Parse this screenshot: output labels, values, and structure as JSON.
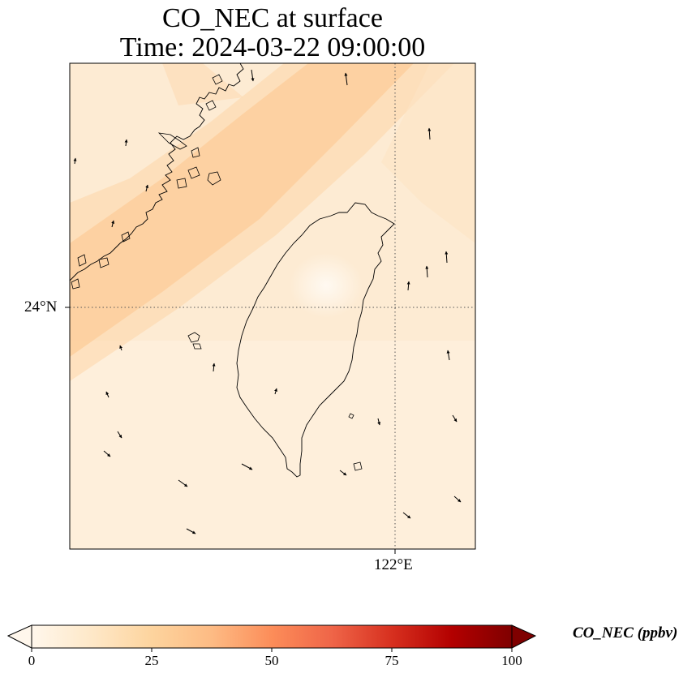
{
  "title": {
    "line1": "CO_NEC at surface",
    "line2": "Time: 2024-03-22 09:00:00"
  },
  "axes": {
    "y_tick_label": "24°N",
    "x_tick_label": "122°E"
  },
  "colorbar": {
    "label": "CO_NEC (ppbv)",
    "ticks": [
      "0",
      "25",
      "50",
      "75",
      "100"
    ],
    "range": [
      0,
      100
    ],
    "colormap": "OrRd",
    "extend": "both"
  },
  "colors": {
    "background_low": "#fff5e6",
    "plume": "#fdc58c",
    "coastline": "#000000",
    "gridline": "#555555"
  },
  "icons": {
    "wind_vectors": "arrow-icon"
  }
}
